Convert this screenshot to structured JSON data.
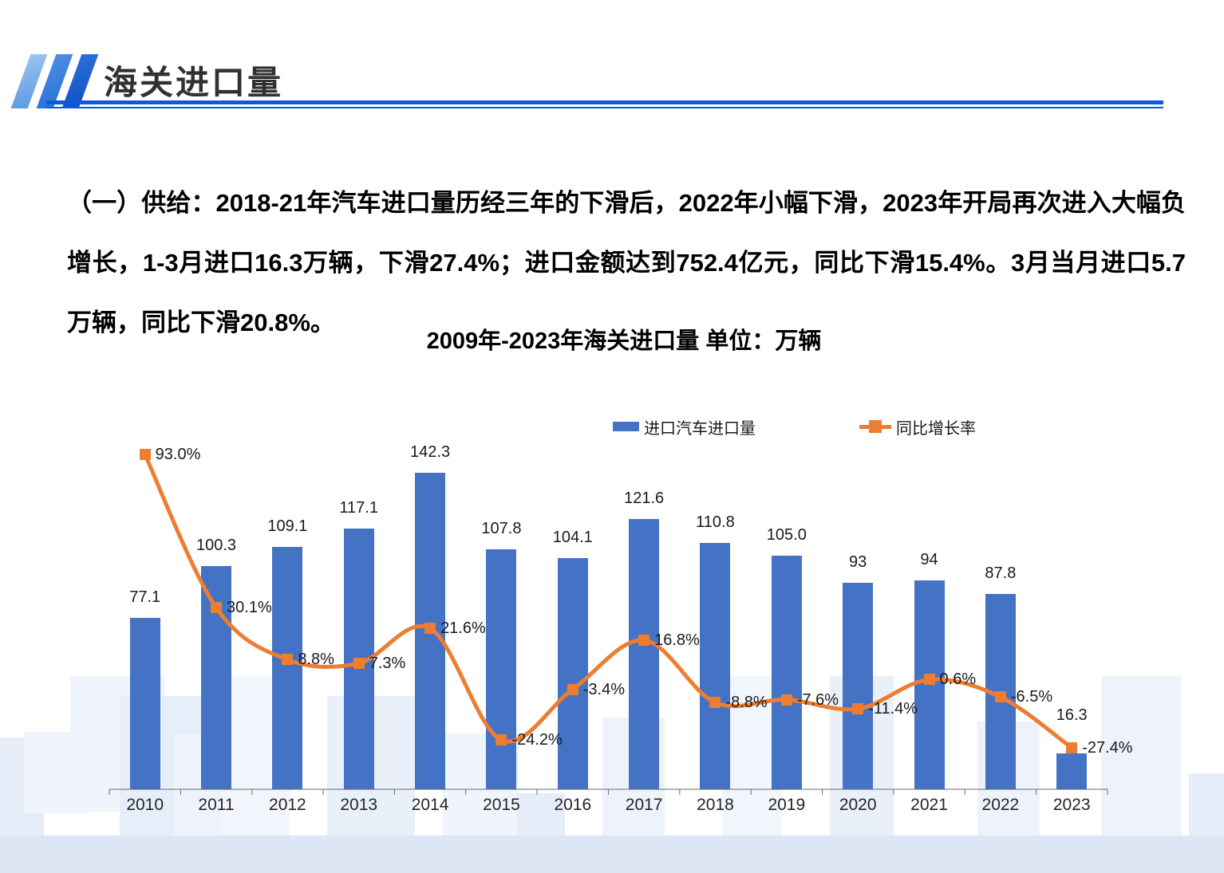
{
  "header": {
    "title": "海关进口量"
  },
  "body": {
    "paragraph": "（一）供给：2018-21年汽车进口量历经三年的下滑后，2022年小幅下滑，2023年开局再次进入大幅负增长，1-3月进口16.3万辆，下滑27.4%；进口金额达到752.4亿元，同比下滑15.4%。3月当月进口5.7万辆，同比下滑20.8%。"
  },
  "chart_data": {
    "type": "bar+line",
    "title": "2009年-2023年海关进口量 单位：万辆",
    "unit": "万辆",
    "grid": false,
    "legend_position": "top",
    "value_axis_visible": false,
    "categories": [
      "2010",
      "2011",
      "2012",
      "2013",
      "2014",
      "2015",
      "2016",
      "2017",
      "2018",
      "2019",
      "2020",
      "2021",
      "2022",
      "2023"
    ],
    "series": [
      {
        "name": "进口汽车进口量",
        "type": "bar",
        "color": "#4472C4",
        "values": [
          77.1,
          100.3,
          109.1,
          117.1,
          142.3,
          107.8,
          104.1,
          121.6,
          110.8,
          105.0,
          93,
          94,
          87.8,
          16.3
        ],
        "labels": [
          "77.1",
          "100.3",
          "109.1",
          "117.1",
          "142.3",
          "107.8",
          "104.1",
          "121.6",
          "110.8",
          "105.0",
          "93",
          "94",
          "87.8",
          "16.3"
        ]
      },
      {
        "name": "同比增长率",
        "type": "line",
        "color": "#ED7D31",
        "values": [
          93.0,
          30.1,
          8.8,
          7.3,
          21.6,
          -24.2,
          -3.4,
          16.8,
          -8.8,
          -7.6,
          -11.4,
          0.6,
          -6.5,
          -27.4
        ],
        "labels": [
          "93.0%",
          "30.1%",
          "8.8%",
          "7.3%",
          "21.6%",
          "-24.2%",
          "-3.4%",
          "16.8%",
          "-8.8%",
          "-7.6%",
          "-11.4%",
          "0.6%",
          "-6.5%",
          "-27.4%"
        ]
      }
    ],
    "colors": {
      "bar": "#4472C4",
      "line": "#ED7D31",
      "header_rule": "#1158d8"
    }
  }
}
